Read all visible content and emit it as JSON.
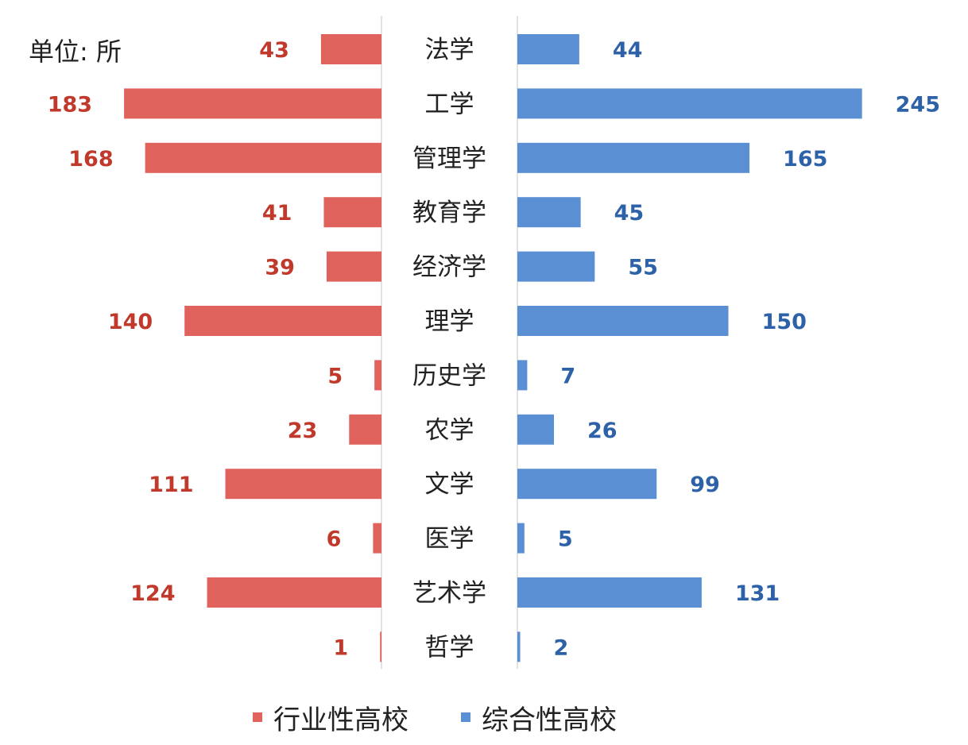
{
  "unit_label": "单位: 所",
  "colors": {
    "left": "#e0625d",
    "right": "#5a8fd3",
    "left_text": "#c0392b",
    "right_text": "#2e62a8"
  },
  "legend": {
    "left": "行业性高校",
    "right": "综合性高校"
  },
  "chart_data": {
    "type": "bar",
    "orientation": "horizontal-diverging",
    "categories": [
      "法学",
      "工学",
      "管理学",
      "教育学",
      "经济学",
      "理学",
      "历史学",
      "农学",
      "文学",
      "医学",
      "艺术学",
      "哲学"
    ],
    "series": [
      {
        "name": "行业性高校",
        "side": "left",
        "values": [
          43,
          183,
          168,
          41,
          39,
          140,
          5,
          23,
          111,
          6,
          124,
          1
        ]
      },
      {
        "name": "综合性高校",
        "side": "right",
        "values": [
          44,
          245,
          165,
          45,
          55,
          150,
          7,
          26,
          99,
          5,
          131,
          2
        ]
      }
    ],
    "title": "",
    "xlabel": "",
    "ylabel": "",
    "xlim": [
      0,
      245
    ],
    "grid": false,
    "legend_position": "bottom"
  }
}
